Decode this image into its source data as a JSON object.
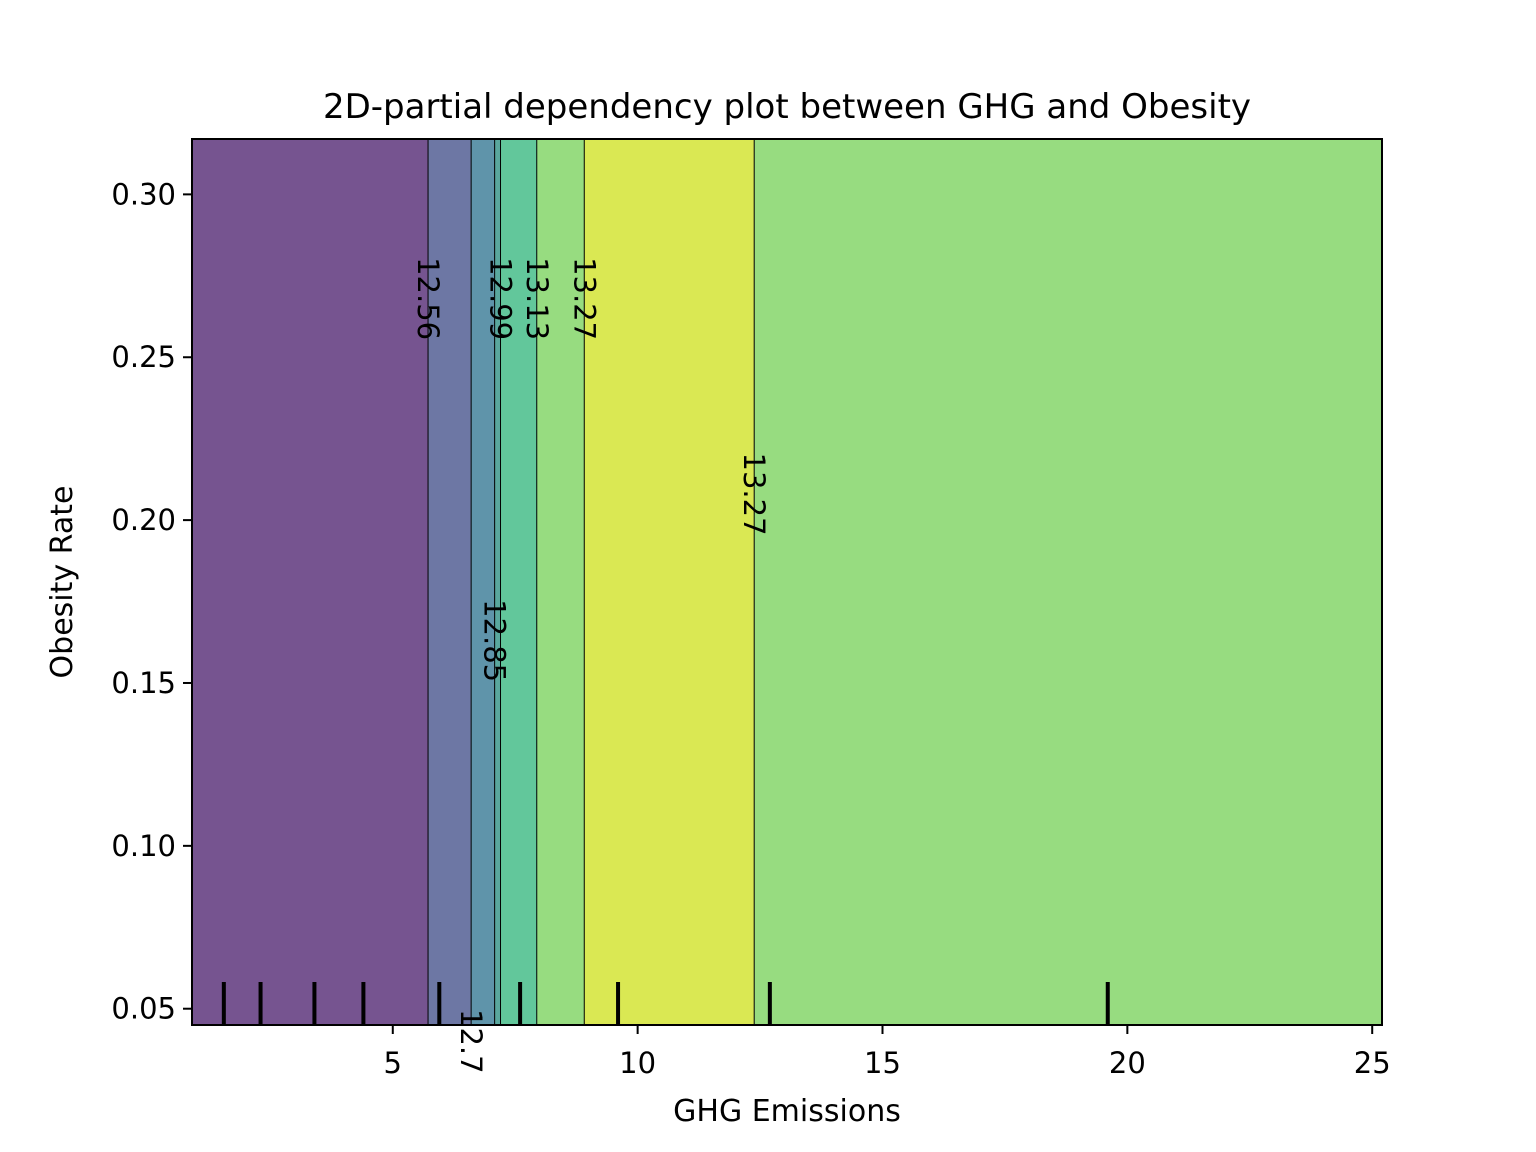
{
  "chart_data": {
    "type": "heatmap",
    "subtype": "filled-contour",
    "title": "2D-partial dependency plot between GHG and Obesity",
    "xlabel": "GHG Emissions",
    "ylabel": "Obesity Rate",
    "xlim": [
      0.9,
      25.2
    ],
    "ylim": [
      0.045,
      0.317
    ],
    "xticks": [
      5,
      10,
      15,
      20,
      25
    ],
    "xtick_labels": [
      "5",
      "10",
      "15",
      "20",
      "25"
    ],
    "yticks": [
      0.05,
      0.1,
      0.15,
      0.2,
      0.25,
      0.3
    ],
    "ytick_labels": [
      "0.05",
      "0.10",
      "0.15",
      "0.20",
      "0.25",
      "0.30"
    ],
    "colormap": "viridis",
    "grid": false,
    "bands": [
      {
        "x0": 0.9,
        "x1": 5.72,
        "color": "#765490"
      },
      {
        "x0": 5.72,
        "x1": 6.6,
        "color": "#6d77a4"
      },
      {
        "x0": 6.6,
        "x1": 7.08,
        "color": "#5f94aa"
      },
      {
        "x0": 7.08,
        "x1": 7.2,
        "color": "#5aa89e"
      },
      {
        "x0": 7.2,
        "x1": 7.94,
        "color": "#62c79b"
      },
      {
        "x0": 7.94,
        "x1": 8.91,
        "color": "#97dc80"
      },
      {
        "x0": 8.91,
        "x1": 12.38,
        "color": "#dae853"
      },
      {
        "x0": 12.38,
        "x1": 25.2,
        "color": "#97dc80"
      }
    ],
    "contour_lines": [
      5.72,
      6.6,
      7.08,
      7.2,
      7.94,
      8.91,
      12.38
    ],
    "contour_labels": [
      {
        "text": "12.56",
        "x": 5.72,
        "y": 0.268
      },
      {
        "text": "12.7",
        "x": 6.6,
        "y": 0.04
      },
      {
        "text": "12.85",
        "x": 7.08,
        "y": 0.163
      },
      {
        "text": "12.99",
        "x": 7.2,
        "y": 0.268
      },
      {
        "text": "13.13",
        "x": 7.94,
        "y": 0.268
      },
      {
        "text": "13.27",
        "x": 8.91,
        "y": 0.268
      },
      {
        "text": "13.27",
        "x": 12.38,
        "y": 0.208
      }
    ],
    "rug_x": [
      1.55,
      2.3,
      3.4,
      4.4,
      5.95,
      7.6,
      9.6,
      12.7,
      19.6
    ]
  }
}
